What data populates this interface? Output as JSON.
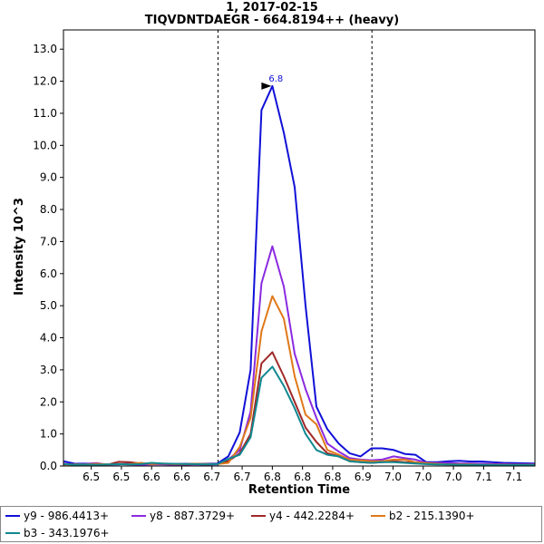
{
  "chart_data": {
    "type": "line",
    "title": "1, 2017-02-15",
    "subtitle": "TIQVDNTDAEGR - 664.8194++ (heavy)",
    "xlabel": "Retention Time",
    "ylabel": "Intensity 10^3",
    "xlim": [
      6.424,
      7.205
    ],
    "ylim": [
      0,
      13.6
    ],
    "xtick_values": [
      6.47,
      6.52,
      6.57,
      6.62,
      6.67,
      6.72,
      6.77,
      6.82,
      6.87,
      6.92,
      6.97,
      7.02,
      7.07,
      7.12,
      7.17
    ],
    "xtick_labels": [
      "6.5",
      "6.5",
      "6.6",
      "6.6",
      "6.7",
      "6.7",
      "6.8",
      "6.8",
      "6.8",
      "6.9",
      "7.0",
      "7.0",
      "7.0",
      "7.1",
      "7.1"
    ],
    "ytick_values": [
      0,
      1,
      2,
      3,
      4,
      5,
      6,
      7,
      8,
      9,
      10,
      11,
      12,
      13
    ],
    "ytick_labels": [
      "0.0",
      "1.0",
      "2.0",
      "3.0",
      "4.0",
      "5.0",
      "6.0",
      "7.0",
      "8.0",
      "9.0",
      "10.0",
      "11.0",
      "12.0",
      "13.0"
    ],
    "boundaries": [
      6.68,
      6.935
    ],
    "peak_annotation": {
      "x": 6.773,
      "y": 11.85,
      "label": "6.8"
    },
    "x": [
      6.424,
      6.443,
      6.461,
      6.479,
      6.497,
      6.515,
      6.534,
      6.552,
      6.57,
      6.588,
      6.606,
      6.625,
      6.643,
      6.661,
      6.679,
      6.697,
      6.716,
      6.734,
      6.752,
      6.77,
      6.789,
      6.807,
      6.825,
      6.843,
      6.861,
      6.88,
      6.898,
      6.916,
      6.934,
      6.952,
      6.971,
      6.989,
      7.007,
      7.025,
      7.043,
      7.062,
      7.08,
      7.098,
      7.116,
      7.134,
      7.153,
      7.171,
      7.205
    ],
    "series": [
      {
        "name": "y9 - 986.4413+",
        "color": "#1010d8",
        "values": [
          0.15,
          0.07,
          0.08,
          0.05,
          0.05,
          0.05,
          0.08,
          0.07,
          0.08,
          0.06,
          0.06,
          0.07,
          0.07,
          0.07,
          0.08,
          0.3,
          1.05,
          3.0,
          11.1,
          11.85,
          10.4,
          8.7,
          5.0,
          1.85,
          1.15,
          0.7,
          0.4,
          0.3,
          0.55,
          0.55,
          0.5,
          0.38,
          0.35,
          0.12,
          0.12,
          0.15,
          0.16,
          0.14,
          0.14,
          0.12,
          0.1,
          0.09,
          0.08
        ]
      },
      {
        "name": "y8 - 887.3729+",
        "color": "#8b2be0",
        "values": [
          0.08,
          0.04,
          0.07,
          0.09,
          0.04,
          0.06,
          0.05,
          0.04,
          0.05,
          0.05,
          0.04,
          0.04,
          0.05,
          0.04,
          0.05,
          0.2,
          0.5,
          1.7,
          5.7,
          6.85,
          5.6,
          3.5,
          2.4,
          1.5,
          0.7,
          0.45,
          0.25,
          0.2,
          0.18,
          0.2,
          0.3,
          0.25,
          0.2,
          0.1,
          0.09,
          0.1,
          0.08,
          0.08,
          0.07,
          0.06,
          0.06,
          0.05,
          0.05
        ]
      },
      {
        "name": "y4 - 442.2284+",
        "color": "#a02828",
        "values": [
          0.05,
          0.05,
          0.04,
          0.06,
          0.04,
          0.13,
          0.12,
          0.08,
          0.08,
          0.07,
          0.06,
          0.05,
          0.06,
          0.05,
          0.06,
          0.15,
          0.4,
          1.0,
          3.2,
          3.55,
          2.8,
          2.0,
          1.2,
          0.75,
          0.4,
          0.3,
          0.15,
          0.12,
          0.1,
          0.12,
          0.15,
          0.12,
          0.1,
          0.07,
          0.06,
          0.05,
          0.05,
          0.05,
          0.04,
          0.04,
          0.04,
          0.03,
          0.03
        ]
      },
      {
        "name": "b2 - 215.1390+",
        "color": "#e07818",
        "values": [
          0.05,
          0.05,
          0.05,
          0.07,
          0.05,
          0.06,
          0.06,
          0.1,
          0.06,
          0.08,
          0.06,
          0.06,
          0.07,
          0.06,
          0.06,
          0.1,
          0.6,
          1.5,
          4.2,
          5.3,
          4.6,
          2.8,
          1.6,
          1.3,
          0.5,
          0.35,
          0.2,
          0.18,
          0.15,
          0.15,
          0.2,
          0.2,
          0.12,
          0.09,
          0.07,
          0.05,
          0.05,
          0.05,
          0.04,
          0.04,
          0.04,
          0.04,
          0.04
        ]
      },
      {
        "name": "b3 - 343.1976+",
        "color": "#108890",
        "values": [
          0.06,
          0.04,
          0.05,
          0.04,
          0.05,
          0.06,
          0.05,
          0.06,
          0.1,
          0.08,
          0.07,
          0.06,
          0.06,
          0.05,
          0.06,
          0.22,
          0.35,
          0.9,
          2.75,
          3.1,
          2.5,
          1.8,
          1.0,
          0.5,
          0.35,
          0.3,
          0.15,
          0.12,
          0.1,
          0.12,
          0.12,
          0.1,
          0.08,
          0.06,
          0.05,
          0.05,
          0.04,
          0.04,
          0.04,
          0.03,
          0.03,
          0.03,
          0.03
        ]
      }
    ]
  }
}
